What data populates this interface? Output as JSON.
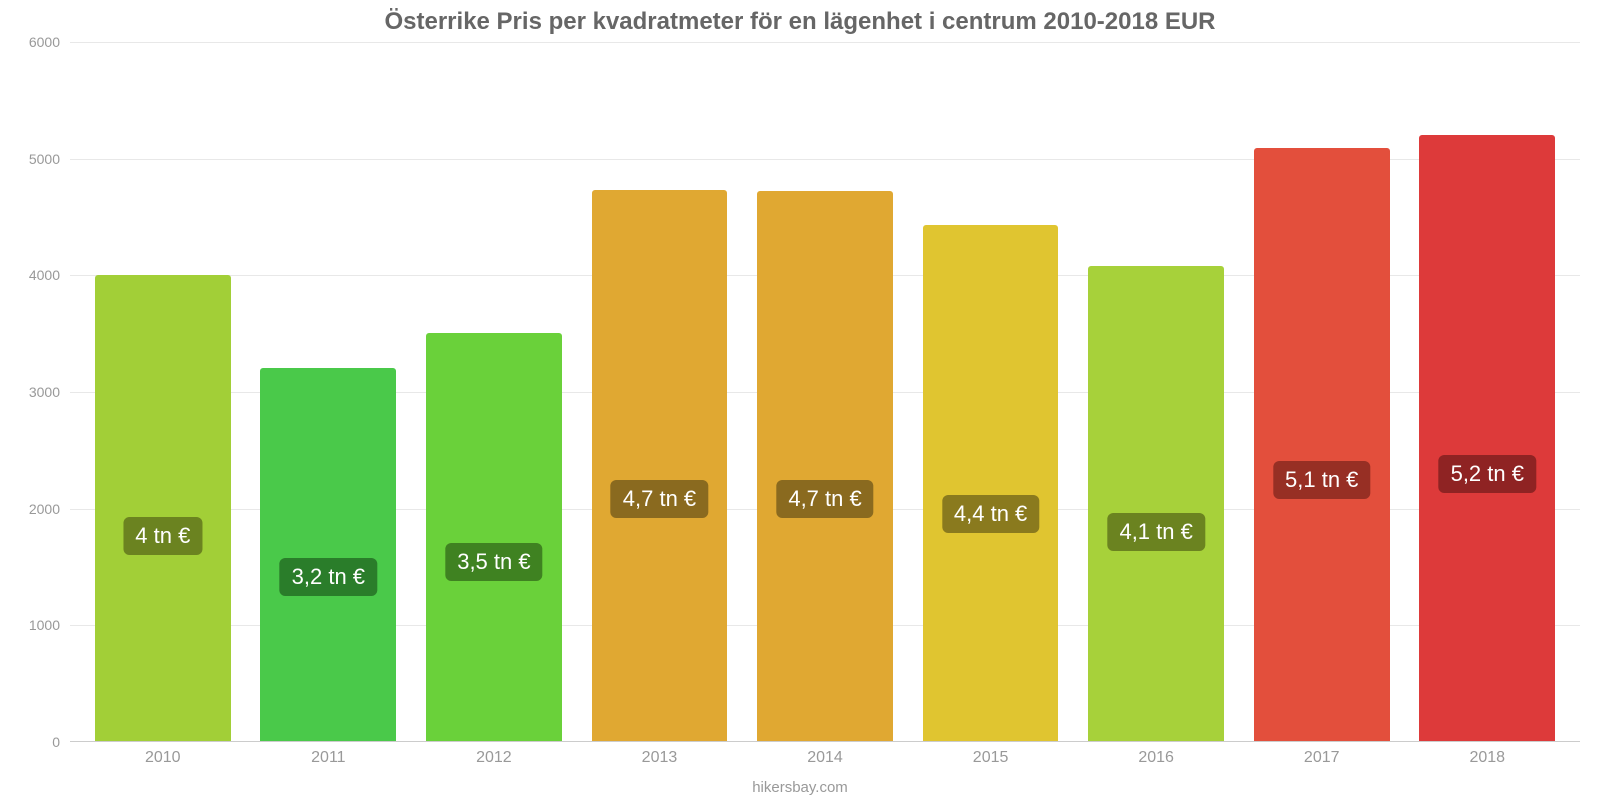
{
  "chart": {
    "type": "bar",
    "title": "Österrike Pris per kvadratmeter för en lägenhet i centrum 2010-2018 EUR",
    "title_fontsize": 24,
    "title_color": "#666666",
    "footer": "hikersbay.com",
    "footer_color": "#999999",
    "background_color": "#ffffff",
    "grid_color": "#e8e8e8",
    "axis_color": "#cccccc",
    "tick_color": "#999999",
    "ylim_min": 0,
    "ylim_max": 6000,
    "ytick_step": 1000,
    "yticks": [
      "0",
      "1000",
      "2000",
      "3000",
      "4000",
      "5000",
      "6000"
    ],
    "bar_width_pct": 82,
    "label_fontsize": 22,
    "xtick_fontsize": 16,
    "categories": [
      "2010",
      "2011",
      "2012",
      "2013",
      "2014",
      "2015",
      "2016",
      "2017",
      "2018"
    ],
    "values": [
      4000,
      3200,
      3500,
      4730,
      4720,
      4430,
      4080,
      5090,
      5200
    ],
    "bar_colors": [
      "#a2cf37",
      "#4ac94a",
      "#6ad13a",
      "#e0a832",
      "#e0a832",
      "#e0c530",
      "#a7d13a",
      "#e34f3c",
      "#dd3a3a"
    ],
    "value_labels": [
      "4 tn €",
      "3,2 tn €",
      "3,5 tn €",
      "4,7 tn €",
      "4,7 tn €",
      "4,4 tn €",
      "4,1 tn €",
      "5,1 tn €",
      "5,2 tn €"
    ],
    "label_bg_colors": [
      "#6b8320",
      "#2a7d2a",
      "#3f8221",
      "#8a6a1f",
      "#8a6a1f",
      "#8a7a1e",
      "#6b8320",
      "#972f24",
      "#8f2323"
    ]
  }
}
